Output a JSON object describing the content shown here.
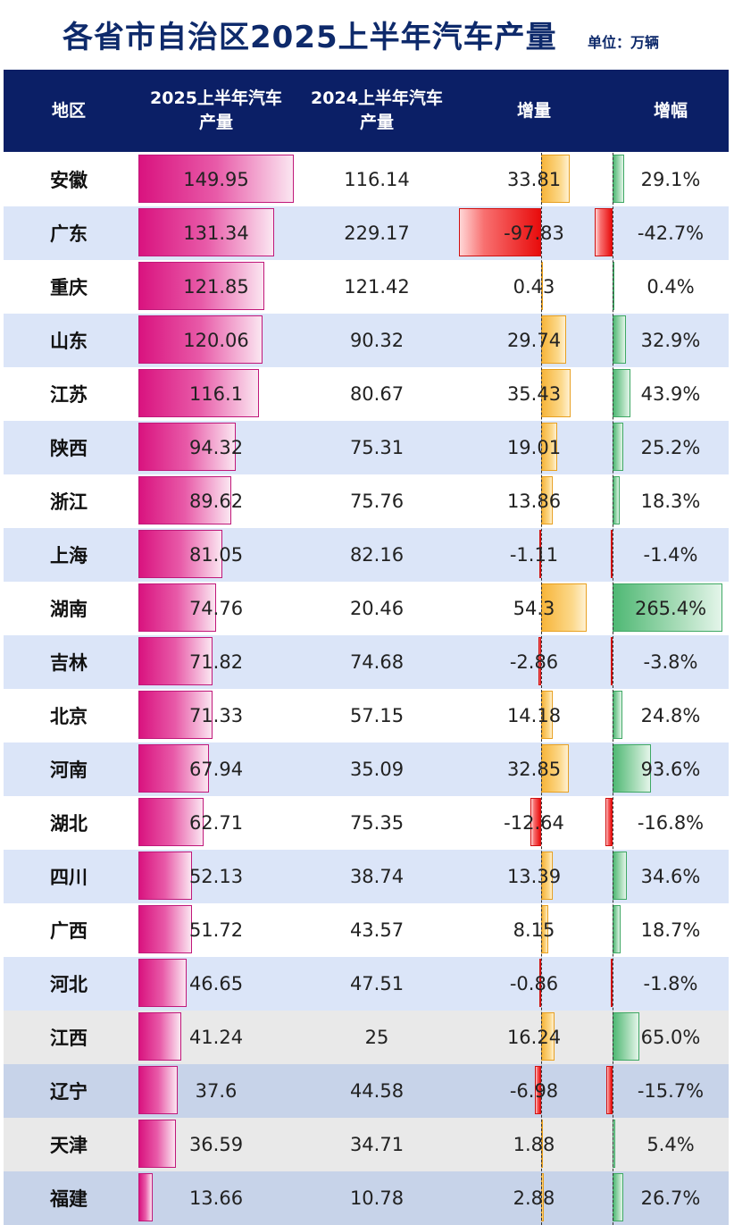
{
  "title": "各省市自治区2025上半年汽车产量",
  "unit": "单位：万辆",
  "headers": {
    "region": "地区",
    "prod2025": "2025上半年汽车\n产量",
    "prod2024": "2024上半年汽车\n产量",
    "increase": "增量",
    "growth": "增幅"
  },
  "colors": {
    "header_bg": "#0b1f66",
    "title": "#0e2a6b",
    "production_bar": "#d9137f",
    "increase_bar": "#f7b53a",
    "decrease_bar": "#e80c0c",
    "growth_bar": "#4fb874"
  },
  "chart_data": {
    "type": "table",
    "title": "各省市自治区2025上半年汽车产量",
    "columns": [
      "地区",
      "2025上半年汽车产量",
      "2024上半年汽车产量",
      "增量",
      "增幅"
    ],
    "rows": [
      {
        "region": "安徽",
        "prod2025": "149.95",
        "prod2024": "116.14",
        "increase": "33.81",
        "growth": "29.1%"
      },
      {
        "region": "广东",
        "prod2025": "131.34",
        "prod2024": "229.17",
        "increase": "-97.83",
        "growth": "-42.7%"
      },
      {
        "region": "重庆",
        "prod2025": "121.85",
        "prod2024": "121.42",
        "increase": "0.43",
        "growth": "0.4%"
      },
      {
        "region": "山东",
        "prod2025": "120.06",
        "prod2024": "90.32",
        "increase": "29.74",
        "growth": "32.9%"
      },
      {
        "region": "江苏",
        "prod2025": "116.1",
        "prod2024": "80.67",
        "increase": "35.43",
        "growth": "43.9%"
      },
      {
        "region": "陕西",
        "prod2025": "94.32",
        "prod2024": "75.31",
        "increase": "19.01",
        "growth": "25.2%"
      },
      {
        "region": "浙江",
        "prod2025": "89.62",
        "prod2024": "75.76",
        "increase": "13.86",
        "growth": "18.3%"
      },
      {
        "region": "上海",
        "prod2025": "81.05",
        "prod2024": "82.16",
        "increase": "-1.11",
        "growth": "-1.4%"
      },
      {
        "region": "湖南",
        "prod2025": "74.76",
        "prod2024": "20.46",
        "increase": "54.3",
        "growth": "265.4%"
      },
      {
        "region": "吉林",
        "prod2025": "71.82",
        "prod2024": "74.68",
        "increase": "-2.86",
        "growth": "-3.8%"
      },
      {
        "region": "北京",
        "prod2025": "71.33",
        "prod2024": "57.15",
        "increase": "14.18",
        "growth": "24.8%"
      },
      {
        "region": "河南",
        "prod2025": "67.94",
        "prod2024": "35.09",
        "increase": "32.85",
        "growth": "93.6%"
      },
      {
        "region": "湖北",
        "prod2025": "62.71",
        "prod2024": "75.35",
        "increase": "-12.64",
        "growth": "-16.8%"
      },
      {
        "region": "四川",
        "prod2025": "52.13",
        "prod2024": "38.74",
        "increase": "13.39",
        "growth": "34.6%"
      },
      {
        "region": "广西",
        "prod2025": "51.72",
        "prod2024": "43.57",
        "increase": "8.15",
        "growth": "18.7%"
      },
      {
        "region": "河北",
        "prod2025": "46.65",
        "prod2024": "47.51",
        "increase": "-0.86",
        "growth": "-1.8%"
      },
      {
        "region": "江西",
        "prod2025": "41.24",
        "prod2024": "25",
        "increase": "16.24",
        "growth": "65.0%"
      },
      {
        "region": "辽宁",
        "prod2025": "37.6",
        "prod2024": "44.58",
        "increase": "-6.98",
        "growth": "-15.7%"
      },
      {
        "region": "天津",
        "prod2025": "36.59",
        "prod2024": "34.71",
        "increase": "1.88",
        "growth": "5.4%"
      },
      {
        "region": "福建",
        "prod2025": "13.66",
        "prod2024": "10.78",
        "increase": "2.88",
        "growth": "26.7%"
      }
    ]
  }
}
